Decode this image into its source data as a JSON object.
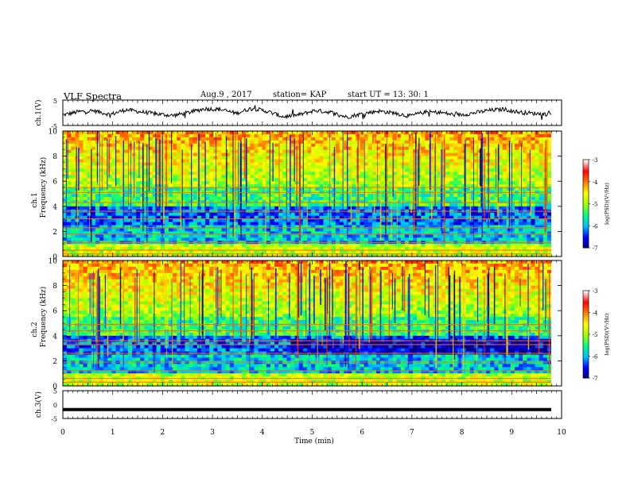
{
  "header": {
    "title": "VLF Spectra",
    "date": "Aug.9 , 2017",
    "station": "station= KAP",
    "start": "start UT = 13: 30: 1"
  },
  "chart_data": [
    {
      "type": "line",
      "panel": "ch1-waveform",
      "ylabel": "ch.1(V)",
      "ylim": [
        -5,
        5
      ],
      "yticks": [
        "5",
        "-5"
      ],
      "xlim": [
        0,
        10
      ],
      "y": [
        -0.9,
        0.4,
        0.8,
        -0.7,
        1.2,
        0.3,
        -0.5,
        -1.1,
        0.1,
        1.6,
        1.3,
        -0.2,
        1.8,
        0.5,
        -1.6,
        -0.8,
        0.9,
        0.2,
        -1.7,
        -0.4,
        0.7,
        -0.1,
        -1.3,
        0.3,
        0.1,
        -1.0,
        -0.2,
        0.9,
        1.4,
        0.2,
        -0.3,
        -0.6
      ]
    },
    {
      "type": "heatmap",
      "panel": "ch1-spectrogram",
      "ylabel": "Frequency (kHz)",
      "channel_label": "ch.1",
      "ylim": [
        0,
        10
      ],
      "yticks": [
        "0",
        "2",
        "4",
        "6",
        "8",
        "10"
      ],
      "xlim": [
        0,
        10
      ],
      "colorbar": {
        "label": "log(PSD)(V²/Hz)",
        "ticks": [
          "-3",
          "-4",
          "-5",
          "-6",
          "-7"
        ],
        "range": [
          -7,
          -3
        ]
      },
      "bands_khz": [
        0.2,
        0.5,
        1.1,
        1.8,
        2.3,
        3.0,
        3.6,
        4.3,
        5.1,
        5.5
      ]
    },
    {
      "type": "heatmap",
      "panel": "ch2-spectrogram",
      "ylabel": "Frequency (kHz)",
      "channel_label": "ch.2",
      "ylim": [
        0,
        10
      ],
      "yticks": [
        "0",
        "2",
        "4",
        "6",
        "8",
        "10"
      ],
      "xlim": [
        0,
        10
      ],
      "colorbar": {
        "label": "log(PSD)(V²/Hz)",
        "ticks": [
          "-3",
          "-4",
          "-5",
          "-6",
          "-7"
        ],
        "range": [
          -7,
          -3
        ]
      },
      "bands_khz": [
        0.3,
        0.6,
        1.2,
        1.9,
        2.6,
        3.3,
        3.6,
        4.4,
        4.9
      ]
    },
    {
      "type": "line",
      "panel": "ch3-waveform",
      "ylabel": "ch.3(V)",
      "ylim": [
        -5,
        5
      ],
      "yticks": [
        "5",
        "0",
        "-5"
      ],
      "xlim": [
        0,
        10
      ],
      "y": [
        -1.8,
        -1.8
      ]
    }
  ],
  "xaxis": {
    "label": "Time (min)",
    "ticks": [
      "0",
      "1",
      "2",
      "3",
      "4",
      "5",
      "6",
      "7",
      "8",
      "9",
      "10"
    ]
  },
  "colors": {
    "colormap": [
      "#000080",
      "#0000ff",
      "#00bfff",
      "#00ff80",
      "#a0ff00",
      "#ffff00",
      "#ff8000",
      "#ff0000",
      "#ffffff"
    ]
  }
}
